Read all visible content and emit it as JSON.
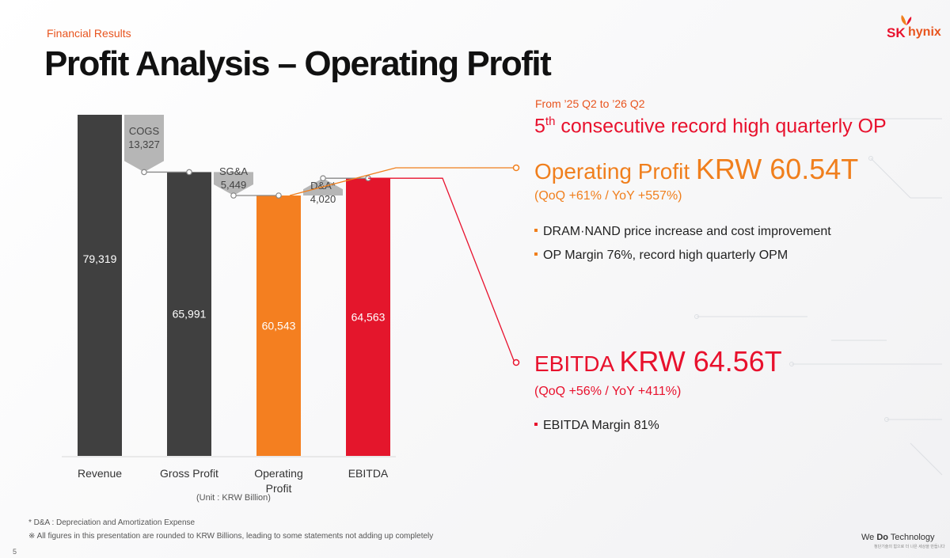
{
  "header": {
    "section": "Financial Results",
    "title": "Profit Analysis – Operating Profit",
    "logo_sk": "SK",
    "logo_hynix": "hynix"
  },
  "chart_data": {
    "type": "bar",
    "subtype": "waterfall",
    "unit": "(Unit : KRW Billion)",
    "categories": [
      "Revenue",
      "Gross Profit",
      "Operating\nProfit",
      "EBITDA"
    ],
    "values": [
      79319,
      65991,
      60543,
      64563
    ],
    "value_labels": [
      "79,319",
      "65,991",
      "60,543",
      "64,563"
    ],
    "steps": [
      {
        "name": "COGS",
        "value": 13327,
        "label": "13,327",
        "from": 79319,
        "to": 65991
      },
      {
        "name": "SG&A",
        "value": 5449,
        "label": "5,449",
        "from": 65991,
        "to": 60543
      },
      {
        "name": "D&A*",
        "value": 4020,
        "label": "4,020",
        "from": 60543,
        "to": 64563
      }
    ],
    "colors": {
      "Revenue": "#404040",
      "Gross Profit": "#404040",
      "Operating Profit": "#f47f20",
      "EBITDA": "#e4162c",
      "steps": "#a9a9a9"
    },
    "ylim": [
      0,
      79319
    ],
    "grid": false,
    "legend": "none"
  },
  "highlights": {
    "period": "From ’25 Q2 to ’26 Q2",
    "headline_num": "5",
    "headline_sup": "th",
    "headline_rest": " consecutive record high quarterly OP",
    "op_label": "Operating Profit ",
    "op_value": "KRW 60.54T",
    "op_change": "(QoQ +61% / YoY +557%)",
    "op_bullets": [
      "DRAM·NAND price increase and cost improvement",
      "OP Margin 76%, record high quarterly OPM"
    ],
    "ebitda_label": "EBITDA ",
    "ebitda_value": "KRW 64.56T",
    "ebitda_change": "(QoQ +56% / YoY +411%)",
    "ebitda_bullets": [
      "EBITDA Margin 81%"
    ]
  },
  "footer": {
    "note1": "* D&A : Depreciation and Amortization Expense",
    "note2": "※ All figures in this presentation are rounded to KRW Billions, leading to some statements not adding up completely",
    "page": "5",
    "tagline_a": "We ",
    "tagline_b": "Do",
    "tagline_c": " Technology",
    "tagline_sub": "청단기술의 힘으로 더 나은 세상을 만듭니다"
  }
}
